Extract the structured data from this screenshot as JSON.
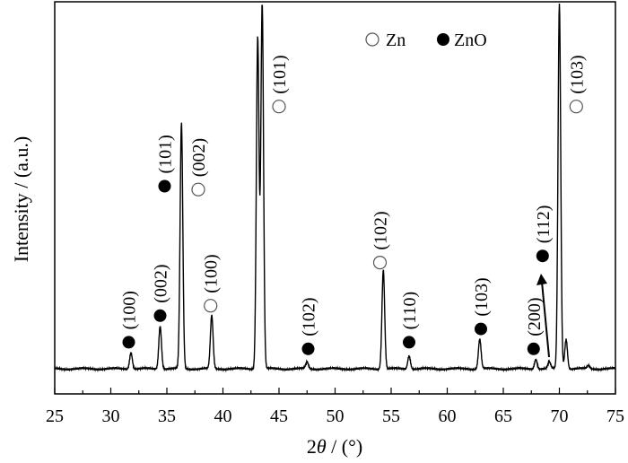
{
  "chart_data": {
    "type": "line",
    "title": "",
    "xlabel_prefix": "2",
    "xlabel_var": "θ",
    "xlabel_suffix": " / (°)",
    "ylabel": "Intensity / (a.u.)",
    "xlim": [
      25,
      75
    ],
    "ylim": [
      0,
      1.1
    ],
    "xticks": [
      "25",
      "30",
      "35",
      "40",
      "45",
      "50",
      "55",
      "60",
      "65",
      "70",
      "75"
    ],
    "grid": false,
    "legend_position": "top-right",
    "series": [
      {
        "peaks": [
          {
            "x": 31.8,
            "y": 0.05
          },
          {
            "x": 34.4,
            "y": 0.13
          },
          {
            "x": 36.3,
            "y": 0.74
          },
          {
            "x": 39.0,
            "y": 0.16
          },
          {
            "x": 43.1,
            "y": 1.0
          },
          {
            "x": 43.5,
            "y": 1.1
          },
          {
            "x": 47.5,
            "y": 0.02
          },
          {
            "x": 54.3,
            "y": 0.3
          },
          {
            "x": 56.6,
            "y": 0.04
          },
          {
            "x": 62.9,
            "y": 0.09
          },
          {
            "x": 67.9,
            "y": 0.03
          },
          {
            "x": 69.1,
            "y": 0.02
          },
          {
            "x": 70.0,
            "y": 1.1
          },
          {
            "x": 70.6,
            "y": 0.09
          },
          {
            "x": 72.6,
            "y": 0.01
          }
        ]
      }
    ],
    "legend": [
      {
        "marker": "open",
        "label": "Zn"
      },
      {
        "marker": "filled",
        "label": "ZnO"
      }
    ],
    "annotations": [
      {
        "phase": "ZnO",
        "label": "(100)",
        "x": 31.6,
        "marker_y": 0.08,
        "text_y": 0.13
      },
      {
        "phase": "ZnO",
        "label": "(002)",
        "x": 34.4,
        "marker_y": 0.16,
        "text_y": 0.21
      },
      {
        "phase": "ZnO",
        "label": "(101)",
        "x": 34.8,
        "marker_y": 0.55,
        "text_y": 0.6
      },
      {
        "phase": "Zn",
        "label": "(002)",
        "x": 37.8,
        "marker_y": 0.54,
        "text_y": 0.59
      },
      {
        "phase": "Zn",
        "label": "(100)",
        "x": 38.9,
        "marker_y": 0.19,
        "text_y": 0.24
      },
      {
        "phase": "Zn",
        "label": "(101)",
        "x": 45.0,
        "marker_y": 0.79,
        "text_y": 0.84
      },
      {
        "phase": "ZnO",
        "label": "(102)",
        "x": 47.6,
        "marker_y": 0.06,
        "text_y": 0.11
      },
      {
        "phase": "Zn",
        "label": "(102)",
        "x": 54.0,
        "marker_y": 0.32,
        "text_y": 0.37
      },
      {
        "phase": "ZnO",
        "label": "(110)",
        "x": 56.6,
        "marker_y": 0.08,
        "text_y": 0.13
      },
      {
        "phase": "ZnO",
        "label": "(103)",
        "x": 63.0,
        "marker_y": 0.12,
        "text_y": 0.17
      },
      {
        "phase": "ZnO",
        "label": "(200)",
        "x": 67.7,
        "marker_y": 0.06,
        "text_y": 0.11
      },
      {
        "phase": "ZnO",
        "label": "(112)",
        "x": 68.5,
        "marker_y": 0.34,
        "text_y": 0.39
      },
      {
        "phase": "Zn",
        "label": "(103)",
        "x": 71.5,
        "marker_y": 0.79,
        "text_y": 0.84
      }
    ]
  }
}
